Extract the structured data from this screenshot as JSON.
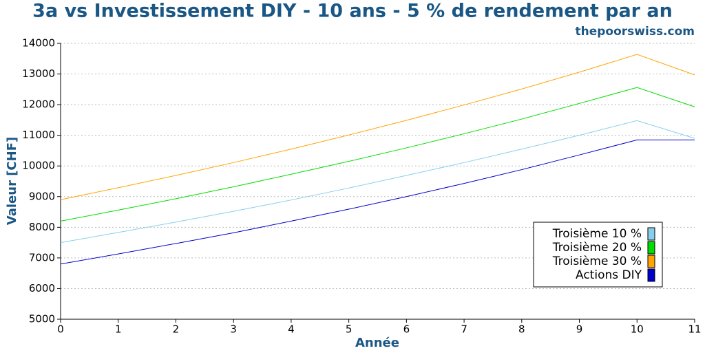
{
  "chart_data": {
    "type": "line",
    "title": "3a vs Investissement DIY - 10 ans - 5 % de rendement par an",
    "subtitle": "thepoorswiss.com",
    "x_label": "Année",
    "y_label": "Valeur [CHF]",
    "x": [
      0,
      1,
      2,
      3,
      4,
      5,
      6,
      7,
      8,
      9,
      10,
      11
    ],
    "series": [
      {
        "name": "Troisième 10 %",
        "color": "#87ceeb",
        "values": [
          7500,
          7830,
          8170,
          8520,
          8890,
          9280,
          9690,
          10110,
          10550,
          11000,
          11480,
          10900
        ]
      },
      {
        "name": "Troisième 20 %",
        "color": "#00dd00",
        "values": [
          8200,
          8560,
          8930,
          9320,
          9730,
          10150,
          10590,
          11050,
          11530,
          12040,
          12560,
          11930
        ]
      },
      {
        "name": "Troisième 30 %",
        "color": "#ffa500",
        "values": [
          8900,
          9290,
          9690,
          10110,
          10550,
          11010,
          11490,
          11990,
          12510,
          13060,
          13640,
          12970
        ]
      },
      {
        "name": "Actions DIY",
        "color": "#0000cc",
        "values": [
          6800,
          7130,
          7470,
          7820,
          8200,
          8590,
          9000,
          9430,
          9880,
          10360,
          10850,
          10850
        ]
      }
    ],
    "xlim": [
      0,
      11
    ],
    "xticks": [
      0,
      1,
      2,
      3,
      4,
      5,
      6,
      7,
      8,
      9,
      10,
      11
    ],
    "ylim": [
      5000,
      14000
    ],
    "yticks": [
      5000,
      6000,
      7000,
      8000,
      9000,
      10000,
      11000,
      12000,
      13000,
      14000
    ],
    "grid": true,
    "legend_position": "lower right"
  }
}
